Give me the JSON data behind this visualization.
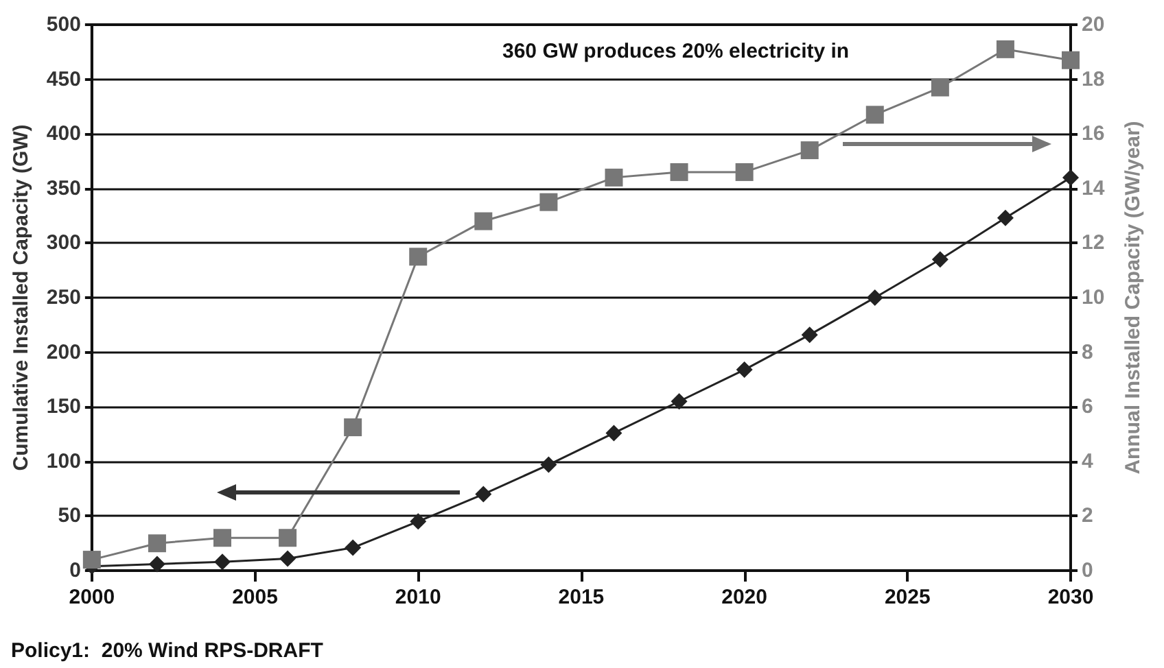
{
  "chart_data": {
    "type": "line",
    "x": [
      2000,
      2002,
      2004,
      2006,
      2008,
      2010,
      2012,
      2014,
      2016,
      2018,
      2020,
      2022,
      2024,
      2026,
      2028,
      2030
    ],
    "series": [
      {
        "color": "#222222",
        "marker": "diamond",
        "values": [
          4,
          6,
          8,
          11,
          21,
          45,
          70,
          97,
          126,
          155,
          184,
          216,
          250,
          285,
          323,
          360
        ]
      },
      {
        "color": "#777777",
        "marker": "square",
        "axis": "y2",
        "values": [
          0.4,
          1.0,
          1.2,
          1.2,
          5.25,
          11.5,
          12.8,
          13.5,
          14.4,
          14.6,
          14.6,
          15.4,
          16.7,
          17.7,
          19.1,
          18.7
        ]
      }
    ],
    "xlim": [
      2000,
      2030
    ],
    "xticks": [
      2000,
      2005,
      2010,
      2015,
      2020,
      2025,
      2030
    ],
    "ylim": [
      0,
      500
    ],
    "yticks": [
      0,
      50,
      100,
      150,
      200,
      250,
      300,
      350,
      400,
      450,
      500
    ],
    "y2lim": [
      0,
      20
    ],
    "y2ticks": [
      0,
      2,
      4,
      6,
      8,
      10,
      12,
      14,
      16,
      18,
      20
    ],
    "ylabel": "Cumulative Installed Capacity (GW)",
    "y2label": "Annual Installed Capacity (GW/year)",
    "grid": "y",
    "annotations": [
      "360 GW produces 20% electricity in",
      "Policy1:  20% Wind RPS-DRAFT"
    ]
  }
}
